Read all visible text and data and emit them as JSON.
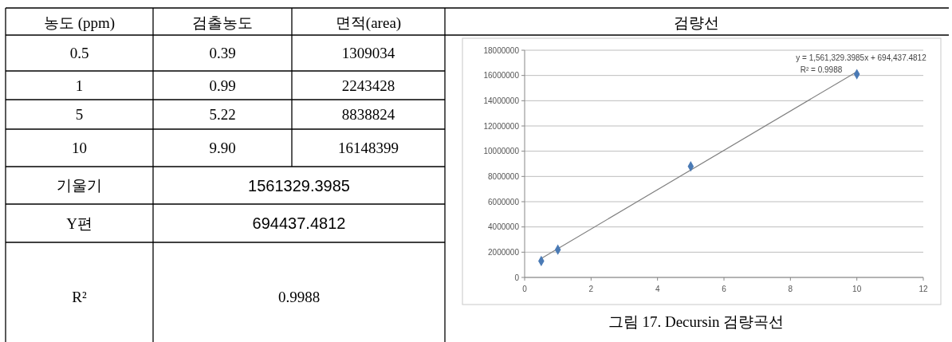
{
  "chart_data": {
    "type": "scatter",
    "title": "검량선",
    "x": [
      0.5,
      1,
      5,
      10
    ],
    "series": [
      {
        "type": "scatter",
        "color": "#4a7ab5",
        "values": [
          1300000,
          2200000,
          8800000,
          16100000
        ],
        "marker": "diamond"
      },
      {
        "type": "line",
        "color": "#808080",
        "x": [
          0.5,
          10
        ],
        "values": [
          1500000,
          16300000
        ],
        "line_style": "solid",
        "marker": "none"
      }
    ],
    "xlim": [
      0,
      12
    ],
    "xticks": [
      0,
      2,
      4,
      6,
      8,
      10,
      12
    ],
    "ylim": [
      0,
      18000000
    ],
    "yticks": [
      0,
      2000000,
      4000000,
      6000000,
      8000000,
      10000000,
      12000000,
      14000000,
      16000000,
      18000000
    ],
    "grid": "y",
    "annotations": [
      "y = 1,561,329.3985x + 694,437.4812",
      "R² = 0.9988",
      "그림 17. Decursin 검량곡선",
      "농도 (ppm)",
      "검출농도",
      "면적(area)",
      "0.5",
      "1",
      "5",
      "10",
      "0.39",
      "0.99",
      "5.22",
      "9.90",
      "1309034",
      "2243428",
      "8838824",
      "16148399",
      "기울기",
      "1561329.3985",
      "Y편",
      "694437.4812",
      "R²",
      "0.9988"
    ]
  }
}
